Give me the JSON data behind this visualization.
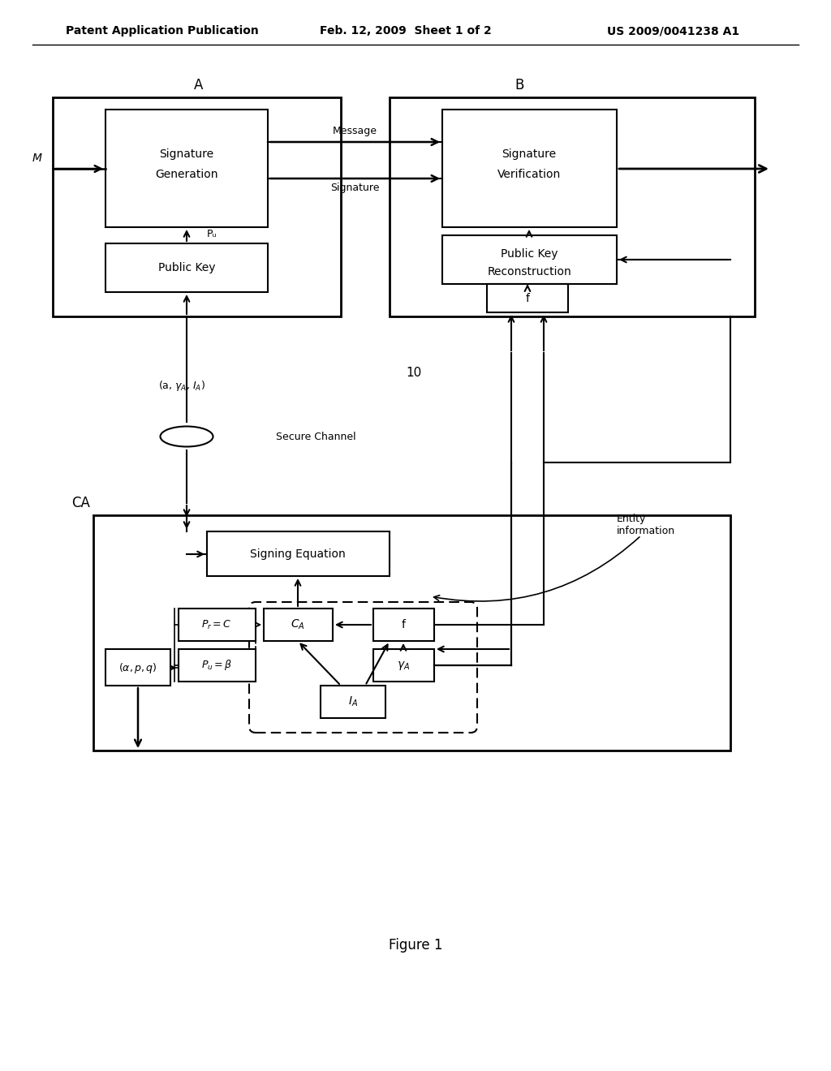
{
  "header_left": "Patent Application Publication",
  "header_mid": "Feb. 12, 2009  Sheet 1 of 2",
  "header_right": "US 2009/0041238 A1",
  "figure_label": "Figure 1",
  "bg_color": "#ffffff",
  "text_color": "#000000"
}
